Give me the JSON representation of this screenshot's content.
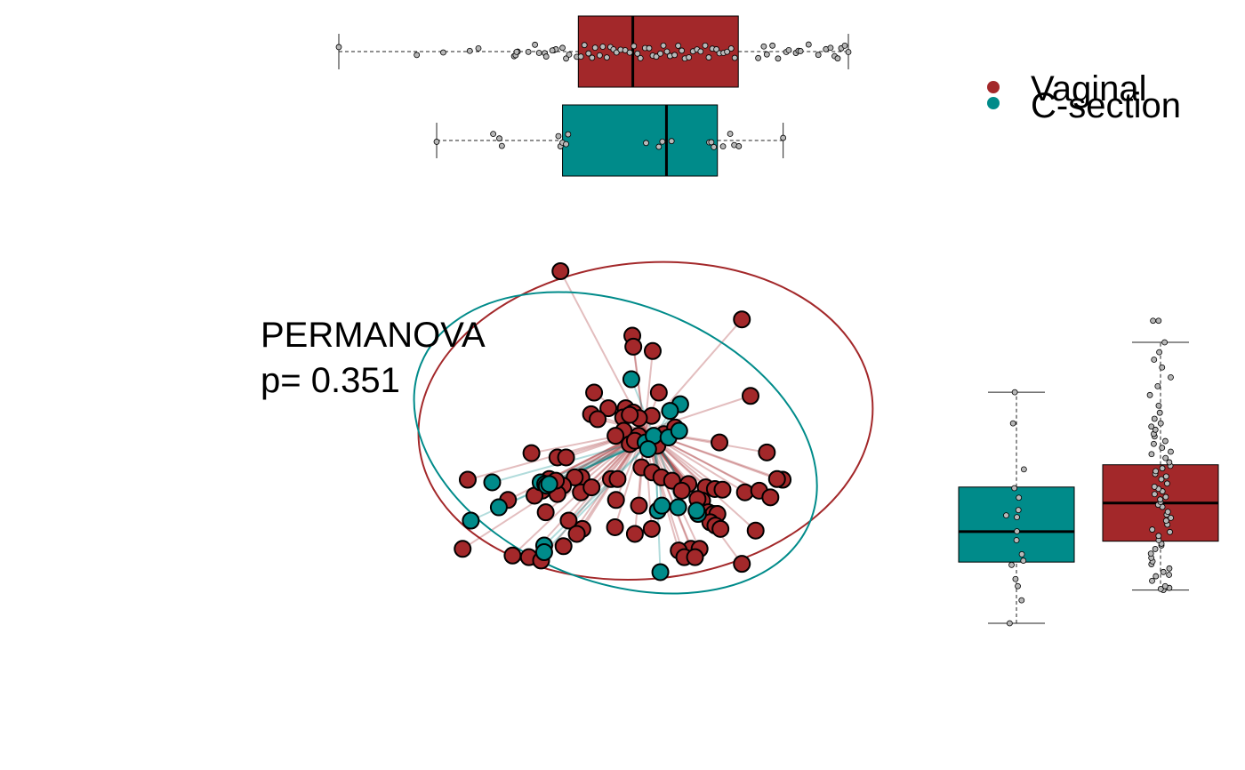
{
  "colors": {
    "vaginal": "#A3282A",
    "csection": "#008B8A",
    "jitter_fill": "#B8B8B8",
    "outline": "#000000",
    "whisker": "#222222"
  },
  "annotation": {
    "line1": "PERMANOVA",
    "line2": "p= 0.351"
  },
  "legend": {
    "items": [
      {
        "label": "Vaginal",
        "color_key": "vaginal"
      },
      {
        "label": "C-section",
        "color_key": "csection"
      }
    ],
    "placement": "top-right"
  },
  "chart_data": [
    {
      "type": "scatter",
      "title": "",
      "xlabel": "",
      "ylabel": "",
      "axes_visible": false,
      "grid": false,
      "xlim": [
        0,
        100
      ],
      "ylim": [
        0,
        100
      ],
      "centroids": {
        "Vaginal": [
          60,
          52
        ],
        "C-section": [
          62,
          50
        ]
      },
      "ellipses": [
        {
          "group": "Vaginal",
          "cx": 60.2,
          "cy": 55.0,
          "rx": 44.7,
          "ry": 47.5,
          "angle_deg": 6
        },
        {
          "group": "C-section",
          "cx": 54.3,
          "cy": 48.4,
          "rx": 41.2,
          "ry": 41.7,
          "angle_deg": -22
        }
      ],
      "series": [
        {
          "name": "Vaginal",
          "color_key": "vaginal",
          "points": [
            [
              43.5,
              100
            ],
            [
              79.1,
              85.5
            ],
            [
              57.6,
              80.6
            ],
            [
              57.8,
              77.3
            ],
            [
              61.6,
              76.0
            ],
            [
              50.1,
              63.5
            ],
            [
              62.8,
              63.5
            ],
            [
              52.9,
              58.8
            ],
            [
              56.3,
              58.8
            ],
            [
              49.5,
              57.0
            ],
            [
              57.8,
              57.5
            ],
            [
              61.4,
              56.5
            ],
            [
              50.8,
              55.5
            ],
            [
              55.8,
              56.0
            ],
            [
              58.9,
              55.8
            ],
            [
              55.9,
              52.0
            ],
            [
              54.3,
              50.5
            ],
            [
              58.8,
              50.5
            ],
            [
              63.8,
              51.0
            ],
            [
              57.1,
              48.0
            ],
            [
              58.1,
              49.0
            ],
            [
              62.5,
              47.5
            ],
            [
              25.3,
              37.3
            ],
            [
              37.8,
              45.3
            ],
            [
              42.9,
              44.0
            ],
            [
              44.6,
              44.0
            ],
            [
              66.0,
              53.0
            ],
            [
              74.7,
              48.5
            ],
            [
              80.8,
              62.5
            ],
            [
              84.0,
              45.5
            ],
            [
              87.1,
              37.3
            ],
            [
              86.0,
              37.5
            ],
            [
              53.4,
              37.5
            ],
            [
              59.4,
              41.0
            ],
            [
              61.5,
              39.5
            ],
            [
              47.6,
              38.0
            ],
            [
              46.3,
              38.0
            ],
            [
              40.6,
              36.5
            ],
            [
              41.3,
              37.5
            ],
            [
              44.0,
              35.5
            ],
            [
              39.9,
              34.0
            ],
            [
              42.9,
              33.0
            ],
            [
              47.5,
              33.5
            ],
            [
              49.6,
              35.0
            ],
            [
              54.7,
              37.5
            ],
            [
              63.3,
              38.0
            ],
            [
              65.4,
              37.0
            ],
            [
              68.6,
              36.0
            ],
            [
              72.0,
              35.0
            ],
            [
              73.8,
              34.5
            ],
            [
              79.7,
              33.5
            ],
            [
              82.5,
              34.0
            ],
            [
              38.4,
              32.5
            ],
            [
              33.2,
              31.2
            ],
            [
              54.4,
              31.2
            ],
            [
              58.9,
              29.5
            ],
            [
              71.3,
              31.0
            ],
            [
              75.3,
              34.3
            ],
            [
              84.7,
              32.0
            ],
            [
              40.6,
              27.5
            ],
            [
              45.1,
              25.0
            ],
            [
              47.8,
              22.5
            ],
            [
              54.2,
              23.0
            ],
            [
              46.7,
              21.0
            ],
            [
              58.1,
              21.0
            ],
            [
              72.5,
              27.5
            ],
            [
              73.5,
              27.0
            ],
            [
              74.3,
              27.0
            ],
            [
              72.9,
              24.5
            ],
            [
              73.9,
              23.5
            ],
            [
              74.9,
              22.5
            ],
            [
              81.8,
              22.0
            ],
            [
              44.1,
              17.3
            ],
            [
              69.1,
              16.5
            ],
            [
              70.8,
              16.5
            ],
            [
              66.7,
              16.0
            ],
            [
              67.8,
              14.0
            ],
            [
              69.9,
              14.0
            ],
            [
              34.1,
              14.5
            ],
            [
              79.1,
              12.0
            ],
            [
              24.3,
              16.5
            ],
            [
              37.3,
              14.0
            ],
            [
              39.7,
              13.0
            ],
            [
              61.4,
              22.5
            ],
            [
              67.3,
              34.0
            ],
            [
              70.4,
              31.5
            ],
            [
              42.6,
              37.0
            ],
            [
              57.1,
              56.8
            ]
          ]
        },
        {
          "name": "C-section",
          "color_key": "csection",
          "points": [
            [
              57.4,
              67.5
            ],
            [
              67.0,
              60.0
            ],
            [
              65.0,
              58.0
            ],
            [
              60.2,
              48.5
            ],
            [
              61.8,
              50.5
            ],
            [
              64.7,
              50.0
            ],
            [
              60.7,
              46.5
            ],
            [
              66.8,
              52.0
            ],
            [
              30.1,
              36.5
            ],
            [
              39.6,
              36.5
            ],
            [
              40.5,
              36.0
            ],
            [
              40.8,
              35.5
            ],
            [
              41.3,
              36.0
            ],
            [
              31.4,
              29.0
            ],
            [
              25.9,
              25.0
            ],
            [
              62.6,
              28.0
            ],
            [
              63.4,
              29.5
            ],
            [
              66.6,
              29.0
            ],
            [
              70.5,
              27.0
            ],
            [
              40.3,
              17.5
            ],
            [
              40.3,
              15.5
            ],
            [
              63.1,
              9.5
            ],
            [
              70.2,
              28.0
            ]
          ]
        }
      ]
    },
    {
      "type": "box",
      "orientation": "horizontal",
      "position": "top",
      "title": "",
      "xlabel": "",
      "ylabel": "",
      "axes_visible": false,
      "xlim": [
        0,
        100
      ],
      "boxes": [
        {
          "group": "Vaginal",
          "color_key": "vaginal",
          "whisker_low": 0,
          "q1": 47.0,
          "median": 57.7,
          "q3": 78.4,
          "whisker_high": 100,
          "points": [
            0,
            15.3,
            20.5,
            25.7,
            27.4,
            34.4,
            34.7,
            35.1,
            34.9,
            37.2,
            38.5,
            39.3,
            40.4,
            42.2,
            40.7,
            42.6,
            41.9,
            43.9,
            44.6,
            45.2,
            46.7,
            47.5,
            48.2,
            49.0,
            49.7,
            50.3,
            51.2,
            51.8,
            52.6,
            53.3,
            53.9,
            54.5,
            55.3,
            56.2,
            57.1,
            57.9,
            58.6,
            59.2,
            60.1,
            60.9,
            61.6,
            62.3,
            63.1,
            63.7,
            64.4,
            65.0,
            65.9,
            66.6,
            67.3,
            67.9,
            68.7,
            69.5,
            70.3,
            71.0,
            71.9,
            72.6,
            73.3,
            74.1,
            74.7,
            75.5,
            76.2,
            77.0,
            77.7,
            82.3,
            83.4,
            84.0,
            85.1,
            86.2,
            87.8,
            88.3,
            89.7,
            90.2,
            90.6,
            92.2,
            94.1,
            95.6,
            96.5,
            97.3,
            97.9,
            98.6,
            99.3,
            100
          ]
        },
        {
          "group": "C-section",
          "color_key": "csection",
          "whisker_low": 19.2,
          "q1": 43.9,
          "median": 64.3,
          "q3": 74.3,
          "whisker_high": 87.2,
          "points": [
            19.2,
            30.3,
            31.5,
            32.0,
            43.1,
            43.5,
            43.9,
            44.6,
            45.0,
            60.3,
            62.8,
            63.5,
            65.3,
            72.7,
            73.1,
            73.6,
            75.4,
            76.8,
            77.6,
            78.5,
            87.2
          ]
        }
      ]
    },
    {
      "type": "box",
      "orientation": "vertical",
      "position": "right",
      "title": "",
      "xlabel": "",
      "ylabel": "",
      "axes_visible": false,
      "ylim": [
        0,
        100
      ],
      "boxes": [
        {
          "group": "C-section",
          "color_key": "csection",
          "whisker_low": 0.5,
          "q1": 17.8,
          "median": 26.4,
          "q3": 39.0,
          "whisker_high": 65.8,
          "points": [
            0.5,
            7.0,
            11.0,
            13.0,
            17.0,
            18.2,
            20.0,
            24.0,
            26.5,
            30.5,
            31.0,
            32.5,
            36.0,
            38.7,
            44.0,
            57.0,
            65.8
          ]
        },
        {
          "group": "Vaginal",
          "color_key": "vaginal",
          "whisker_low": 9.9,
          "q1": 23.7,
          "median": 34.5,
          "q3": 45.3,
          "whisker_high": 79.9,
          "points": [
            9.9,
            10.2,
            10.5,
            11.0,
            12.5,
            13.8,
            14.2,
            15.0,
            16.0,
            17.2,
            18.0,
            19.0,
            20.2,
            21.5,
            22.5,
            23.0,
            24.0,
            25.2,
            26.3,
            27.0,
            28.4,
            29.5,
            30.3,
            31.2,
            32.0,
            33.4,
            34.0,
            34.8,
            35.5,
            36.2,
            37.0,
            37.8,
            38.5,
            39.1,
            40.0,
            41.2,
            42.0,
            42.7,
            43.5,
            44.3,
            45.0,
            46.0,
            47.2,
            48.3,
            49.0,
            50.1,
            51.2,
            52.0,
            53.3,
            54.0,
            55.2,
            56.1,
            57.0,
            58.3,
            60.0,
            62.0,
            65.0,
            67.5,
            70.0,
            72.8,
            75.0,
            77.1,
            79.9,
            86.0,
            86.0
          ]
        }
      ]
    }
  ]
}
